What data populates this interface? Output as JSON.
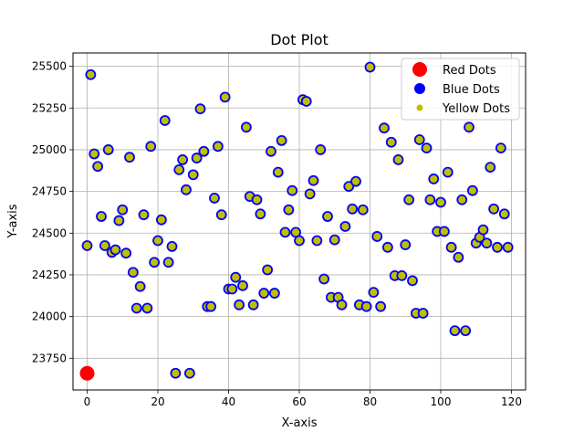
{
  "chart_data": {
    "type": "scatter",
    "title": "Dot Plot",
    "xlabel": "X-axis",
    "ylabel": "Y-axis",
    "xlim": [
      -4,
      124
    ],
    "ylim": [
      23560,
      25580
    ],
    "xticks": [
      0,
      20,
      40,
      60,
      80,
      100,
      120
    ],
    "yticks": [
      23750,
      24000,
      24250,
      24500,
      24750,
      25000,
      25250,
      25500
    ],
    "grid": true,
    "legend_position": "top-right",
    "legend": [
      {
        "label": "Red Dots",
        "color": "#ff0000",
        "marker": "large-circle"
      },
      {
        "label": "Blue Dots",
        "color": "#0000ff",
        "marker": "circle"
      },
      {
        "label": "Yellow Dots",
        "color": "#bfbf00",
        "marker": "small-circle"
      }
    ],
    "series": [
      {
        "name": "Red Dots",
        "color": "#ff0000",
        "points": [
          [
            0,
            23660
          ]
        ]
      },
      {
        "name": "Blue Dots",
        "color": "#0000ff",
        "edge_only": true,
        "points": "same-as-yellow"
      },
      {
        "name": "Yellow Dots",
        "color": "#bfbf00",
        "edge": "#0000ff",
        "x": [
          0,
          1,
          2,
          3,
          4,
          5,
          6,
          7,
          8,
          9,
          10,
          11,
          12,
          13,
          14,
          15,
          16,
          17,
          18,
          19,
          20,
          21,
          22,
          23,
          24,
          25,
          26,
          27,
          28,
          29,
          30,
          31,
          32,
          33,
          34,
          35,
          36,
          37,
          38,
          39,
          40,
          41,
          42,
          43,
          44,
          45,
          46,
          47,
          48,
          49,
          50,
          51,
          52,
          53,
          54,
          55,
          56,
          57,
          58,
          59,
          60,
          61,
          62,
          63,
          64,
          65,
          66,
          67,
          68,
          69,
          70,
          71,
          72,
          73,
          74,
          75,
          76,
          77,
          78,
          79,
          80,
          81,
          82,
          83,
          84,
          85,
          86,
          87,
          88,
          89,
          90,
          91,
          92,
          93,
          94,
          95,
          96,
          97,
          98,
          99,
          100,
          101,
          102,
          103,
          104,
          105,
          106,
          107,
          108,
          109,
          110,
          111,
          112,
          113,
          114,
          115,
          116,
          117,
          118,
          119
        ],
        "y": [
          24425,
          25450,
          24975,
          24900,
          24600,
          24425,
          25000,
          24385,
          24400,
          24575,
          24640,
          24380,
          24955,
          24265,
          24050,
          24180,
          24610,
          24050,
          25020,
          24325,
          24455,
          24580,
          25175,
          24325,
          24420,
          23660,
          24880,
          24940,
          24760,
          23660,
          24850,
          24950,
          25245,
          24990,
          24060,
          24060,
          24710,
          25020,
          24610,
          25315,
          24165,
          24165,
          24235,
          24070,
          24185,
          25135,
          24720,
          24070,
          24700,
          24615,
          24140,
          24280,
          24990,
          24140,
          24865,
          25055,
          24505,
          24640,
          24755,
          24505,
          24455,
          25300,
          25290,
          24735,
          24815,
          24455,
          25000,
          24225,
          24600,
          24115,
          24460,
          24115,
          24070,
          24540,
          24780,
          24645,
          24810,
          24070,
          24640,
          24060,
          25495,
          24145,
          24480,
          24060,
          25130,
          24415,
          25045,
          24245,
          24940,
          24245,
          24430,
          24700,
          24215,
          24020,
          25060,
          24020,
          25010,
          24700,
          24825,
          24510,
          24685,
          24510,
          24865,
          24415,
          23915,
          24355,
          24700,
          23915,
          25135,
          24755,
          24440,
          24475,
          24520,
          24440,
          24895,
          24645,
          24415,
          25010,
          24615,
          24415
        ]
      }
    ]
  }
}
